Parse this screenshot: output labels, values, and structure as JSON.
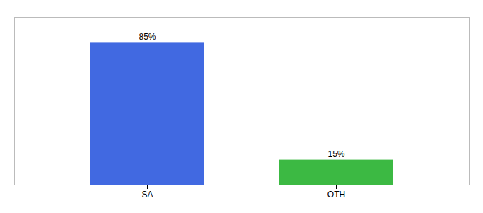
{
  "chart_data": {
    "type": "bar",
    "categories": [
      "SA",
      "OTH"
    ],
    "values": [
      85,
      15
    ],
    "value_labels": [
      "85%",
      "15%"
    ],
    "colors": [
      "#4169e1",
      "#3cb943"
    ],
    "ylim": [
      0,
      100
    ],
    "data_labels": true,
    "tick_labels": "x"
  }
}
